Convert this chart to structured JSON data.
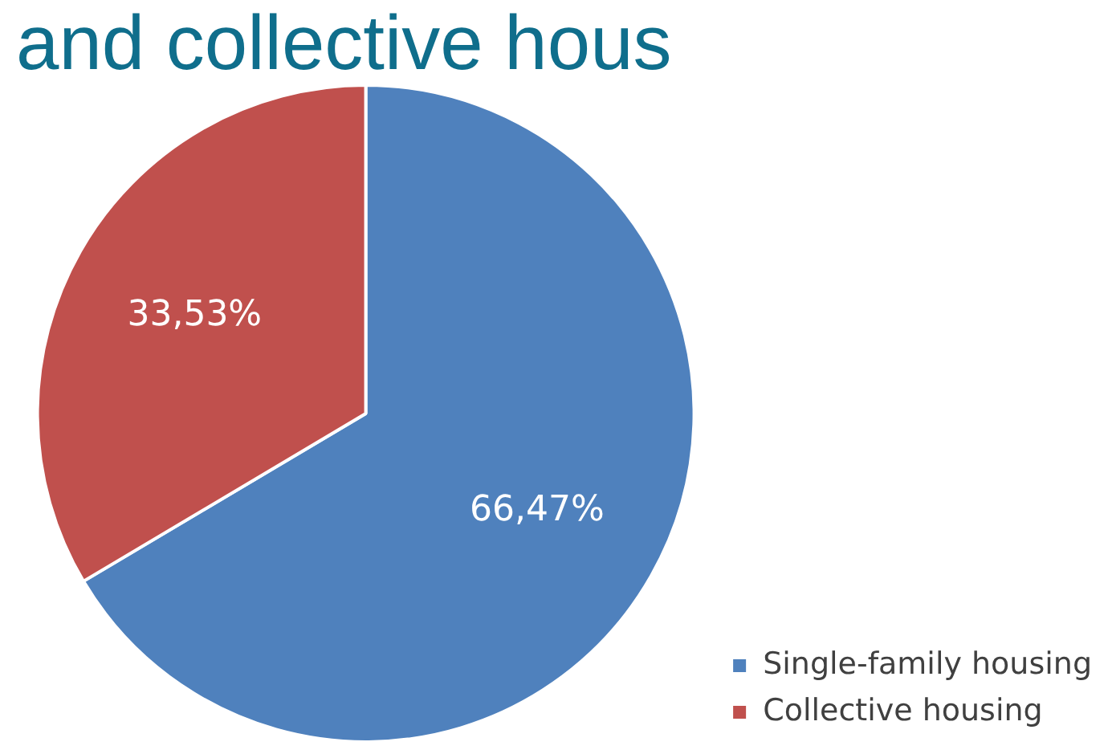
{
  "chart_data": {
    "type": "pie",
    "title": "and collective hous",
    "categories": [
      "Single-family housing",
      "Collective housing"
    ],
    "values": [
      66.47,
      33.53
    ],
    "colors": [
      "#4f81bd",
      "#c0504d"
    ],
    "value_labels": [
      "66,47%",
      "33,53%"
    ],
    "legend": "bottom right"
  }
}
